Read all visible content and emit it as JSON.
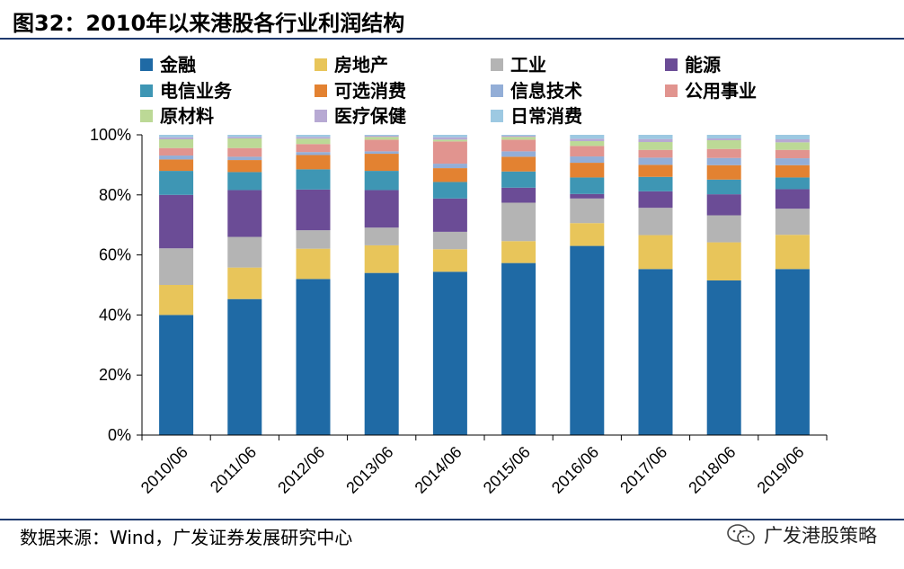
{
  "figure_title": "图32：2010年以来港股各行业利润结构",
  "source": "数据来源：Wind，广发证券发展研究中心",
  "watermark": "广发港股策略",
  "watermark_icon": "wechat-icon",
  "chart_data": {
    "type": "bar",
    "stacked": true,
    "title": "图32：2010年以来港股各行业利润结构",
    "xlabel": "",
    "ylabel": "",
    "ylim": [
      0,
      100
    ],
    "y_ticks": [
      "0%",
      "20%",
      "40%",
      "60%",
      "80%",
      "100%"
    ],
    "legend_position": "top",
    "grid": false,
    "categories": [
      "2010/06",
      "2011/06",
      "2012/06",
      "2013/06",
      "2014/06",
      "2015/06",
      "2016/06",
      "2017/06",
      "2018/06",
      "2019/06"
    ],
    "series": [
      {
        "name": "金融",
        "color": "#1f6aa5",
        "values": [
          40,
          45.3,
          52.5,
          54,
          54.4,
          57.3,
          63,
          55.3,
          51.5,
          55.3
        ]
      },
      {
        "name": "房地产",
        "color": "#e8c55a",
        "values": [
          10,
          10.5,
          10.2,
          9.2,
          7.5,
          7.3,
          7.6,
          11.3,
          12.7,
          11.4
        ]
      },
      {
        "name": "工业",
        "color": "#b4b4b4",
        "values": [
          12.2,
          10.2,
          6.2,
          5.9,
          5.8,
          12.8,
          8.2,
          9.1,
          9.0,
          8.7
        ]
      },
      {
        "name": "能源",
        "color": "#6b4c96",
        "values": [
          17.8,
          15.6,
          13.7,
          12.5,
          11.1,
          5.0,
          1.5,
          5.5,
          7.0,
          6.5
        ]
      },
      {
        "name": "电信业务",
        "color": "#3e96b4",
        "values": [
          8.0,
          6.0,
          6.8,
          6.4,
          5.5,
          5.4,
          5.5,
          4.8,
          4.9,
          3.9
        ]
      },
      {
        "name": "可选消费",
        "color": "#e38231",
        "values": [
          3.8,
          4.0,
          4.8,
          5.7,
          4.6,
          4.9,
          4.9,
          4.0,
          4.8,
          4.1
        ]
      },
      {
        "name": "信息技术",
        "color": "#93aed7",
        "values": [
          1.3,
          1.1,
          1.0,
          0.8,
          1.5,
          1.8,
          2.1,
          2.4,
          2.4,
          2.3
        ]
      },
      {
        "name": "公用事业",
        "color": "#e1948f",
        "values": [
          2.5,
          2.9,
          2.7,
          3.9,
          7.4,
          3.9,
          3.5,
          2.6,
          3.0,
          2.8
        ]
      },
      {
        "name": "原材料",
        "color": "#bcd996",
        "values": [
          2.9,
          3.2,
          1.8,
          0.9,
          0.6,
          0.9,
          1.6,
          2.6,
          2.9,
          2.5
        ]
      },
      {
        "name": "医疗保健",
        "color": "#b7a9d3",
        "values": [
          0.7,
          0.5,
          0.6,
          0.4,
          0.8,
          0.4,
          0.8,
          1.0,
          0.6,
          1.0
        ]
      },
      {
        "name": "日常消费",
        "color": "#9dc9e2",
        "values": [
          0.8,
          0.7,
          0.7,
          0.3,
          0.8,
          0.3,
          1.3,
          1.4,
          1.2,
          1.5
        ]
      }
    ]
  }
}
